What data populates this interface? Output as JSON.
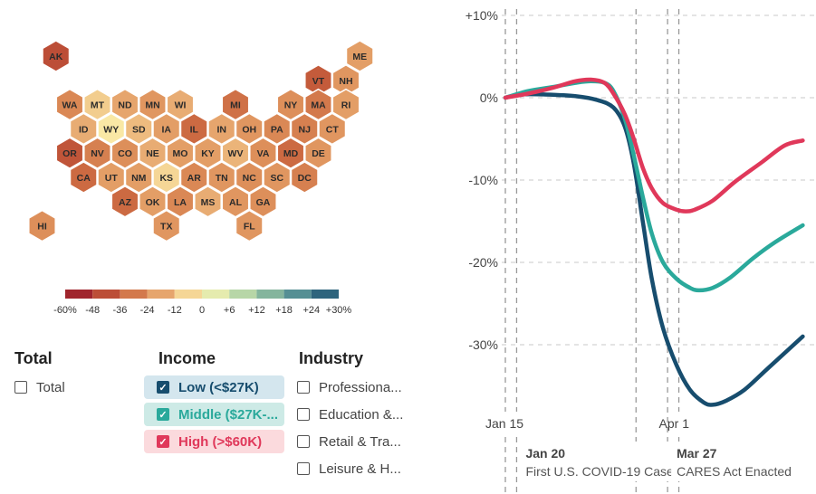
{
  "map": {
    "states": [
      {
        "abbr": "AK",
        "value": -42,
        "col": 1.5,
        "row": 0
      },
      {
        "abbr": "ME",
        "value": -20,
        "col": 12.5,
        "row": 0
      },
      {
        "abbr": "VT",
        "value": -38,
        "col": 11,
        "row": 1
      },
      {
        "abbr": "NH",
        "value": -22,
        "col": 12,
        "row": 1
      },
      {
        "abbr": "WA",
        "value": -26,
        "col": 2,
        "row": 2
      },
      {
        "abbr": "MT",
        "value": -8,
        "col": 3,
        "row": 2
      },
      {
        "abbr": "ND",
        "value": -18,
        "col": 4,
        "row": 2
      },
      {
        "abbr": "MN",
        "value": -22,
        "col": 5,
        "row": 2
      },
      {
        "abbr": "WI",
        "value": -16,
        "col": 6,
        "row": 2
      },
      {
        "abbr": "MI",
        "value": -32,
        "col": 8,
        "row": 2
      },
      {
        "abbr": "NY",
        "value": -24,
        "col": 10,
        "row": 2
      },
      {
        "abbr": "MA",
        "value": -30,
        "col": 11,
        "row": 2
      },
      {
        "abbr": "RI",
        "value": -20,
        "col": 12,
        "row": 2
      },
      {
        "abbr": "ID",
        "value": -16,
        "col": 2.5,
        "row": 3
      },
      {
        "abbr": "WY",
        "value": -2,
        "col": 3.5,
        "row": 3
      },
      {
        "abbr": "SD",
        "value": -12,
        "col": 4.5,
        "row": 3
      },
      {
        "abbr": "IA",
        "value": -20,
        "col": 5.5,
        "row": 3
      },
      {
        "abbr": "IL",
        "value": -34,
        "col": 6.5,
        "row": 3
      },
      {
        "abbr": "IN",
        "value": -18,
        "col": 7.5,
        "row": 3
      },
      {
        "abbr": "OH",
        "value": -22,
        "col": 8.5,
        "row": 3
      },
      {
        "abbr": "PA",
        "value": -26,
        "col": 9.5,
        "row": 3
      },
      {
        "abbr": "NJ",
        "value": -28,
        "col": 10.5,
        "row": 3
      },
      {
        "abbr": "CT",
        "value": -22,
        "col": 11.5,
        "row": 3
      },
      {
        "abbr": "OR",
        "value": -40,
        "col": 2,
        "row": 4
      },
      {
        "abbr": "NV",
        "value": -28,
        "col": 3,
        "row": 4
      },
      {
        "abbr": "CO",
        "value": -24,
        "col": 4,
        "row": 4
      },
      {
        "abbr": "NE",
        "value": -16,
        "col": 5,
        "row": 4
      },
      {
        "abbr": "MO",
        "value": -20,
        "col": 6,
        "row": 4
      },
      {
        "abbr": "KY",
        "value": -20,
        "col": 7,
        "row": 4
      },
      {
        "abbr": "WV",
        "value": -14,
        "col": 8,
        "row": 4
      },
      {
        "abbr": "VA",
        "value": -24,
        "col": 9,
        "row": 4
      },
      {
        "abbr": "MD",
        "value": -34,
        "col": 10,
        "row": 4
      },
      {
        "abbr": "DE",
        "value": -22,
        "col": 11,
        "row": 4
      },
      {
        "abbr": "CA",
        "value": -34,
        "col": 2.5,
        "row": 5
      },
      {
        "abbr": "UT",
        "value": -20,
        "col": 3.5,
        "row": 5
      },
      {
        "abbr": "NM",
        "value": -20,
        "col": 4.5,
        "row": 5
      },
      {
        "abbr": "KS",
        "value": -6,
        "col": 5.5,
        "row": 5
      },
      {
        "abbr": "AR",
        "value": -26,
        "col": 6.5,
        "row": 5
      },
      {
        "abbr": "TN",
        "value": -22,
        "col": 7.5,
        "row": 5
      },
      {
        "abbr": "NC",
        "value": -24,
        "col": 8.5,
        "row": 5
      },
      {
        "abbr": "SC",
        "value": -22,
        "col": 9.5,
        "row": 5
      },
      {
        "abbr": "DC",
        "value": -28,
        "col": 10.5,
        "row": 5
      },
      {
        "abbr": "AZ",
        "value": -34,
        "col": 4,
        "row": 6
      },
      {
        "abbr": "OK",
        "value": -20,
        "col": 5,
        "row": 6
      },
      {
        "abbr": "LA",
        "value": -26,
        "col": 6,
        "row": 6
      },
      {
        "abbr": "MS",
        "value": -16,
        "col": 7,
        "row": 6
      },
      {
        "abbr": "AL",
        "value": -22,
        "col": 8,
        "row": 6
      },
      {
        "abbr": "GA",
        "value": -24,
        "col": 9,
        "row": 6
      },
      {
        "abbr": "HI",
        "value": -24,
        "col": 1,
        "row": 7
      },
      {
        "abbr": "TX",
        "value": -22,
        "col": 5.5,
        "row": 7
      },
      {
        "abbr": "FL",
        "value": -22,
        "col": 8.5,
        "row": 7
      }
    ],
    "legend": {
      "ticks": [
        "-60%",
        "-48",
        "-36",
        "-24",
        "-12",
        "0",
        "+6",
        "+12",
        "+18",
        "+24",
        "+30%"
      ],
      "colors": [
        "#8f0f28",
        "#b03a31",
        "#c8623d",
        "#dd8f5a",
        "#eebb7f",
        "#fbf1ad",
        "#cfe4ae",
        "#9ec7a0",
        "#6aa39a",
        "#3f7a8e",
        "#1d4e6c"
      ]
    }
  },
  "filters": {
    "total": {
      "title": "Total",
      "options": [
        {
          "label": "Total",
          "checked": false
        }
      ]
    },
    "income": {
      "title": "Income",
      "options": [
        {
          "label": "Low (<$27K)",
          "checked": true,
          "color": "#174d6e",
          "bg": "#d4e6ee"
        },
        {
          "label": "Middle ($27K-...",
          "checked": true,
          "color": "#2aa99b",
          "bg": "#cdeae6"
        },
        {
          "label": "High (>$60K)",
          "checked": true,
          "color": "#e0385a",
          "bg": "#fbdadd"
        }
      ]
    },
    "industry": {
      "title": "Industry",
      "options": [
        {
          "label": "Professiona...",
          "checked": false
        },
        {
          "label": "Education &...",
          "checked": false
        },
        {
          "label": "Retail & Tra...",
          "checked": false
        },
        {
          "label": "Leisure & H...",
          "checked": false
        }
      ]
    }
  },
  "chart_data": {
    "type": "line",
    "yticks": [
      10,
      0,
      -10,
      -20,
      -30
    ],
    "ytick_labels": [
      "+10%",
      "0%",
      "-10%",
      "-20%",
      "-30%"
    ],
    "ylim": [
      -40,
      10
    ],
    "xlim": [
      "2020-01-15",
      "2020-06-25"
    ],
    "xtick_labels": [
      {
        "date": "2020-01-15",
        "label": "Jan 15"
      },
      {
        "date": "2020-04-01",
        "label": "Apr 1"
      }
    ],
    "events": [
      {
        "date": "2020-01-20",
        "label": "Jan 20",
        "desc": "First U.S. COVID-19 Case"
      },
      {
        "date": "2020-03-27",
        "label": "Mar 27",
        "desc": "CARES Act Enacted"
      }
    ],
    "extra_gridline": "2020-03-13",
    "series": [
      {
        "name": "Low (<$27K)",
        "color": "#174d6e",
        "points": [
          [
            "2020-01-15",
            0.0
          ],
          [
            "2020-01-22",
            0.4
          ],
          [
            "2020-02-01",
            0.4
          ],
          [
            "2020-02-15",
            0.2
          ],
          [
            "2020-02-25",
            -0.3
          ],
          [
            "2020-03-03",
            -1.2
          ],
          [
            "2020-03-08",
            -3.5
          ],
          [
            "2020-03-12",
            -8.0
          ],
          [
            "2020-03-16",
            -15.0
          ],
          [
            "2020-03-20",
            -22.0
          ],
          [
            "2020-03-25",
            -28.0
          ],
          [
            "2020-03-31",
            -32.5
          ],
          [
            "2020-04-06",
            -35.5
          ],
          [
            "2020-04-12",
            -37.0
          ],
          [
            "2020-04-16",
            -37.3
          ],
          [
            "2020-04-22",
            -36.8
          ],
          [
            "2020-04-30",
            -35.5
          ],
          [
            "2020-05-10",
            -33.0
          ],
          [
            "2020-05-20",
            -30.5
          ],
          [
            "2020-05-26",
            -29.0
          ]
        ]
      },
      {
        "name": "Middle ($27K-...",
        "color": "#2aa99b",
        "points": [
          [
            "2020-01-15",
            0.0
          ],
          [
            "2020-01-25",
            0.8
          ],
          [
            "2020-02-05",
            1.3
          ],
          [
            "2020-02-15",
            1.8
          ],
          [
            "2020-02-22",
            2.0
          ],
          [
            "2020-02-28",
            1.8
          ],
          [
            "2020-03-03",
            0.8
          ],
          [
            "2020-03-08",
            -2.5
          ],
          [
            "2020-03-12",
            -7.0
          ],
          [
            "2020-03-16",
            -12.0
          ],
          [
            "2020-03-20",
            -16.5
          ],
          [
            "2020-03-25",
            -20.0
          ],
          [
            "2020-03-31",
            -22.0
          ],
          [
            "2020-04-06",
            -23.1
          ],
          [
            "2020-04-10",
            -23.4
          ],
          [
            "2020-04-16",
            -23.1
          ],
          [
            "2020-04-24",
            -21.8
          ],
          [
            "2020-05-04",
            -19.5
          ],
          [
            "2020-05-14",
            -17.5
          ],
          [
            "2020-05-26",
            -15.5
          ]
        ]
      },
      {
        "name": "High (>$60K)",
        "color": "#e0385a",
        "points": [
          [
            "2020-01-15",
            0.0
          ],
          [
            "2020-01-25",
            0.5
          ],
          [
            "2020-02-05",
            1.2
          ],
          [
            "2020-02-15",
            2.0
          ],
          [
            "2020-02-22",
            2.2
          ],
          [
            "2020-02-28",
            1.8
          ],
          [
            "2020-03-03",
            0.5
          ],
          [
            "2020-03-08",
            -2.0
          ],
          [
            "2020-03-12",
            -5.0
          ],
          [
            "2020-03-16",
            -8.5
          ],
          [
            "2020-03-20",
            -11.0
          ],
          [
            "2020-03-25",
            -12.8
          ],
          [
            "2020-03-31",
            -13.6
          ],
          [
            "2020-04-04",
            -13.8
          ],
          [
            "2020-04-08",
            -13.6
          ],
          [
            "2020-04-16",
            -12.5
          ],
          [
            "2020-04-26",
            -10.2
          ],
          [
            "2020-05-08",
            -7.8
          ],
          [
            "2020-05-18",
            -5.8
          ],
          [
            "2020-05-26",
            -5.2
          ]
        ]
      }
    ]
  }
}
